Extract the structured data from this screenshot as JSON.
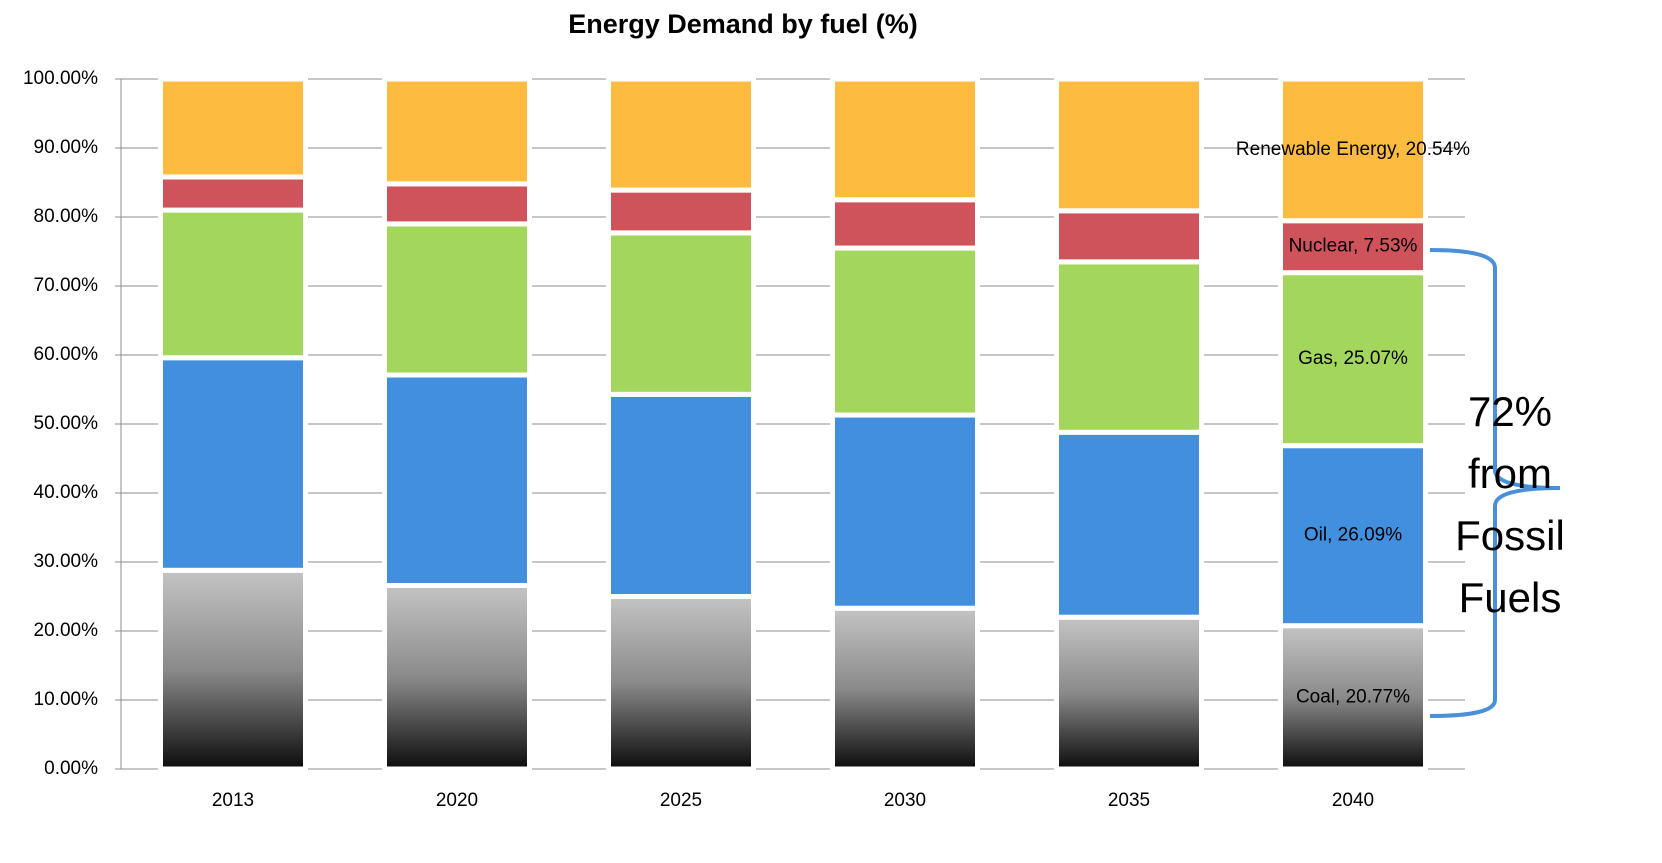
{
  "chart_data": {
    "type": "stacked_bar",
    "title": "Energy Demand by fuel (%)",
    "categories": [
      "2013",
      "2020",
      "2025",
      "2030",
      "2035",
      "2040"
    ],
    "series": [
      {
        "name": "Coal",
        "color": "#8a8a8a",
        "values": [
          28.8,
          26.6,
          25.0,
          23.3,
          22.0,
          20.77
        ],
        "value_labels": [
          null,
          null,
          null,
          null,
          null,
          "Coal, 20.77%"
        ]
      },
      {
        "name": "Oil",
        "color": "#418fde",
        "values": [
          30.8,
          30.5,
          29.3,
          28.0,
          26.8,
          26.09
        ],
        "value_labels": [
          null,
          null,
          null,
          null,
          null,
          "Oil, 26.09%"
        ]
      },
      {
        "name": "Gas",
        "color": "#a3d65c",
        "values": [
          21.4,
          21.9,
          23.4,
          24.2,
          24.7,
          25.07
        ],
        "value_labels": [
          null,
          null,
          null,
          null,
          null,
          "Gas, 25.07%"
        ]
      },
      {
        "name": "Nuclear",
        "color": "#cf535b",
        "values": [
          4.8,
          5.8,
          6.2,
          7.0,
          7.4,
          7.53
        ],
        "value_labels": [
          null,
          null,
          null,
          null,
          null,
          "Nuclear, 7.53%"
        ]
      },
      {
        "name": "Renewable Energy",
        "color": "#fdbb3f",
        "values": [
          14.2,
          15.2,
          16.1,
          17.5,
          19.1,
          20.54
        ],
        "value_labels": [
          null,
          null,
          null,
          null,
          null,
          "Renewable Energy, 20.54%"
        ]
      }
    ],
    "ylim": [
      0,
      100
    ],
    "yticks": [
      {
        "value": 0,
        "label": "0.00%"
      },
      {
        "value": 10,
        "label": "10.00%"
      },
      {
        "value": 20,
        "label": "20.00%"
      },
      {
        "value": 30,
        "label": "30.00%"
      },
      {
        "value": 40,
        "label": "40.00%"
      },
      {
        "value": 50,
        "label": "50.00%"
      },
      {
        "value": 60,
        "label": "60.00%"
      },
      {
        "value": 70,
        "label": "70.00%"
      },
      {
        "value": 80,
        "label": "80.00%"
      },
      {
        "value": 90,
        "label": "90.00%"
      },
      {
        "value": 100,
        "label": "100.00%"
      }
    ],
    "grid": true,
    "annotation": [
      "72%",
      "from",
      "Fossil",
      "Fuels"
    ]
  }
}
